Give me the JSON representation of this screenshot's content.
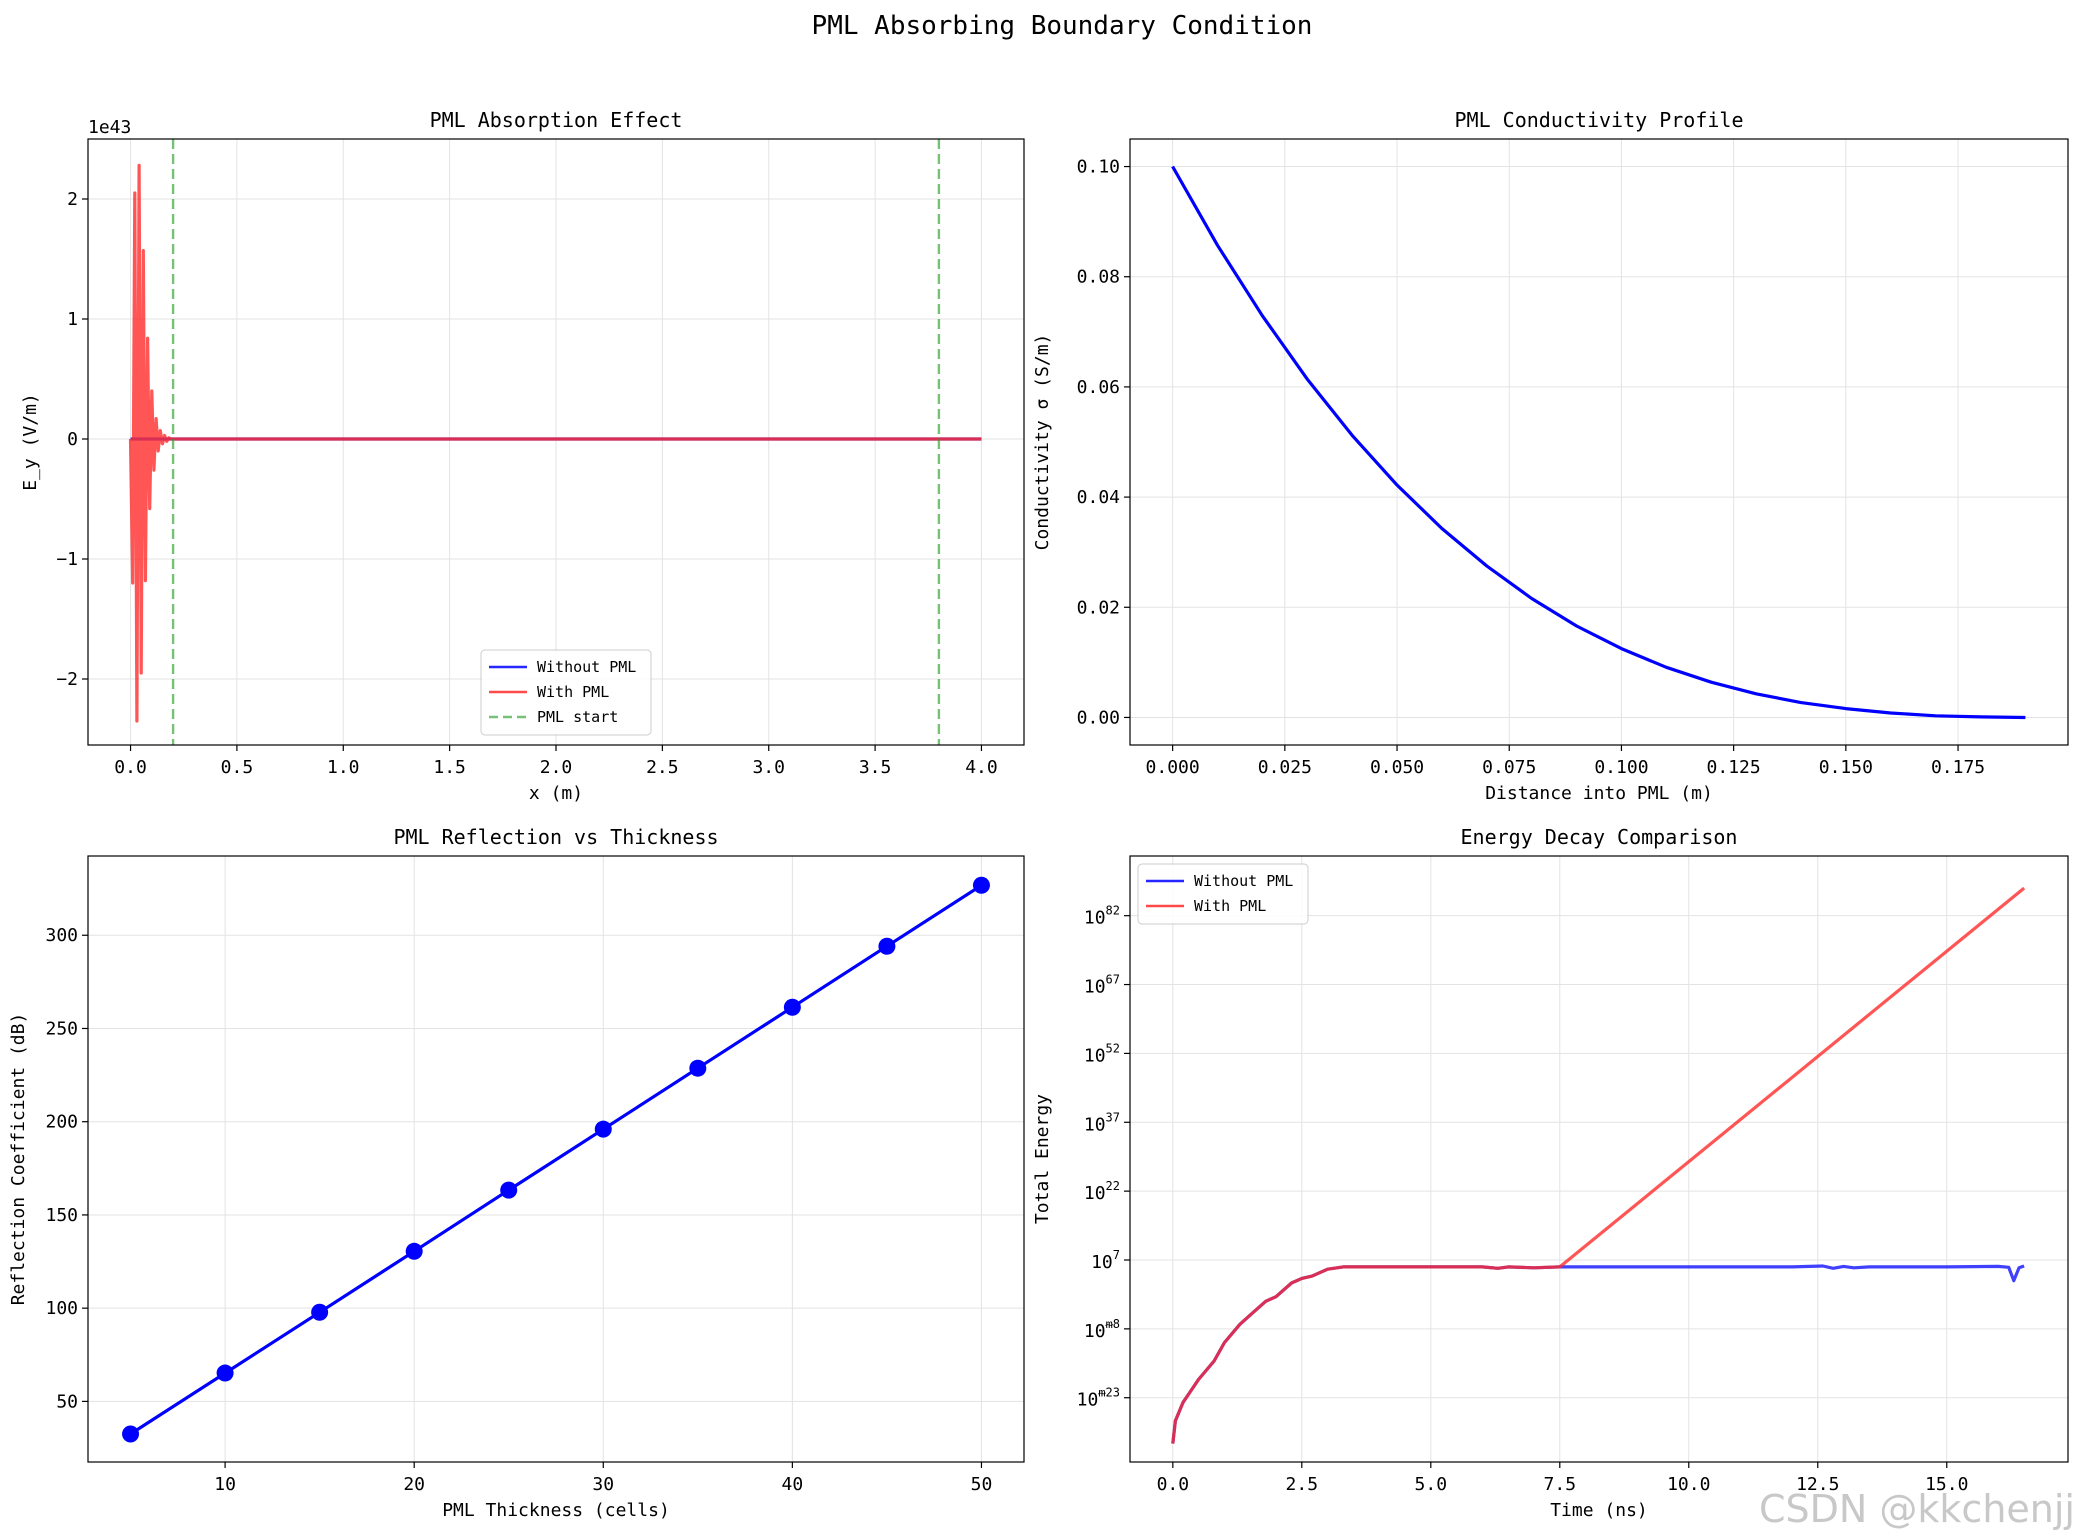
{
  "figure": {
    "title": "PML Absorbing Boundary Condition",
    "watermark": "CSDN @kkchenjj"
  },
  "colors": {
    "blue": "#0000ff",
    "red": "#ff2a2a",
    "green": "#2ca02c",
    "grid": "#e3e3e3"
  },
  "chart_data": [
    {
      "id": "absorption",
      "type": "line",
      "title": "PML Absorption Effect",
      "xlabel": "x (m)",
      "ylabel": "E_y (V/m)",
      "offset_text": "1e43",
      "xlim": [
        -0.2,
        4.2
      ],
      "ylim": [
        -2.55,
        2.5
      ],
      "xticks": [
        0.0,
        0.5,
        1.0,
        1.5,
        2.0,
        2.5,
        3.0,
        3.5,
        4.0
      ],
      "xtick_labels": [
        "0.0",
        "0.5",
        "1.0",
        "1.5",
        "2.0",
        "2.5",
        "3.0",
        "3.5",
        "4.0"
      ],
      "yticks": [
        -2,
        -1,
        0,
        1,
        2
      ],
      "ytick_labels": [
        "−2",
        "−1",
        "0",
        "1",
        "2"
      ],
      "grid": true,
      "legend": "lower center",
      "series": [
        {
          "name": "Without PML",
          "color": "#0000ff",
          "style": "solid",
          "x": [
            0.0,
            4.0
          ],
          "y": [
            0.0,
            0.0
          ]
        },
        {
          "name": "With PML",
          "color": "#ff2a2a",
          "style": "solid",
          "x": [
            0.0,
            0.01,
            0.02,
            0.03,
            0.04,
            0.05,
            0.06,
            0.07,
            0.08,
            0.09,
            0.1,
            0.11,
            0.12,
            0.13,
            0.14,
            0.15,
            0.16,
            0.17,
            0.18,
            0.19,
            0.2,
            4.0
          ],
          "y": [
            0.0,
            -1.2,
            2.05,
            -2.35,
            2.28,
            -1.95,
            1.57,
            -1.18,
            0.84,
            -0.58,
            0.4,
            -0.26,
            0.17,
            -0.1,
            0.07,
            -0.04,
            0.03,
            -0.02,
            0.01,
            0.0,
            0.0,
            0.0
          ]
        },
        {
          "name": "PML start",
          "color": "#2ca02c",
          "style": "dashed",
          "vlines": [
            0.2,
            3.8
          ]
        }
      ]
    },
    {
      "id": "conductivity",
      "type": "line",
      "title": "PML Conductivity Profile",
      "xlabel": "Distance into PML (m)",
      "ylabel": "Conductivity σ (S/m)",
      "xlim": [
        -0.0095,
        0.1995
      ],
      "ylim": [
        -0.005,
        0.105
      ],
      "xticks": [
        0.0,
        0.025,
        0.05,
        0.075,
        0.1,
        0.125,
        0.15,
        0.175
      ],
      "xtick_labels": [
        "0.000",
        "0.025",
        "0.050",
        "0.075",
        "0.100",
        "0.125",
        "0.150",
        "0.175"
      ],
      "yticks": [
        0.0,
        0.02,
        0.04,
        0.06,
        0.08,
        0.1
      ],
      "ytick_labels": [
        "0.00",
        "0.02",
        "0.04",
        "0.06",
        "0.08",
        "0.10"
      ],
      "grid": true,
      "series": [
        {
          "name": "",
          "color": "#0000ff",
          "x": [
            0.0,
            0.01,
            0.02,
            0.03,
            0.04,
            0.05,
            0.06,
            0.07,
            0.08,
            0.09,
            0.1,
            0.11,
            0.12,
            0.13,
            0.14,
            0.15,
            0.16,
            0.17,
            0.18,
            0.19
          ],
          "y": [
            0.1,
            0.0857,
            0.0729,
            0.0614,
            0.0512,
            0.0422,
            0.0343,
            0.0275,
            0.0216,
            0.0166,
            0.0125,
            0.0091,
            0.0064,
            0.0043,
            0.0027,
            0.0016,
            0.0008,
            0.0003,
            0.0001,
            0.0
          ]
        }
      ]
    },
    {
      "id": "reflection",
      "type": "line",
      "title": "PML Reflection vs Thickness",
      "xlabel": "PML Thickness (cells)",
      "ylabel": "Reflection Coefficient (dB)",
      "xlim": [
        2.75,
        52.25
      ],
      "ylim": [
        17.5,
        342.5
      ],
      "xticks": [
        10,
        20,
        30,
        40,
        50
      ],
      "xtick_labels": [
        "10",
        "20",
        "30",
        "40",
        "50"
      ],
      "yticks": [
        50,
        100,
        150,
        200,
        250,
        300
      ],
      "ytick_labels": [
        "50",
        "100",
        "150",
        "200",
        "250",
        "300"
      ],
      "grid": true,
      "series": [
        {
          "name": "",
          "color": "#0000ff",
          "marker": "circle",
          "x": [
            5,
            10,
            15,
            20,
            25,
            30,
            35,
            40,
            45,
            50
          ],
          "y": [
            32.5,
            65.2,
            97.8,
            130.5,
            163.3,
            196.0,
            228.7,
            261.4,
            294.1,
            326.8
          ]
        }
      ]
    },
    {
      "id": "energy",
      "type": "line",
      "title": "Energy Decay Comparison",
      "xlabel": "Time (ns)",
      "ylabel": "Total Energy",
      "xscale": "linear",
      "yscale": "log",
      "xlim": [
        -0.83,
        17.35
      ],
      "ylim_log10": [
        -37,
        95
      ],
      "xticks": [
        0.0,
        2.5,
        5.0,
        7.5,
        10.0,
        12.5,
        15.0
      ],
      "xtick_labels": [
        "0.0",
        "2.5",
        "5.0",
        "7.5",
        "10.0",
        "12.5",
        "15.0"
      ],
      "yticks_log10": [
        -23,
        -8,
        7,
        22,
        37,
        52,
        67,
        82
      ],
      "ytick_base": "10",
      "ytick_exponents": [
        "ᵯ23",
        "ᵯ8",
        "7",
        "22",
        "37",
        "52",
        "67",
        "82"
      ],
      "grid": true,
      "legend": "upper left",
      "series": [
        {
          "name": "Without PML",
          "color": "#0000ff",
          "x": [
            0.0,
            0.05,
            0.2,
            0.5,
            0.8,
            1.0,
            1.3,
            1.5,
            1.8,
            2.0,
            2.3,
            2.5,
            2.7,
            3.0,
            3.3,
            4.0,
            5.0,
            6.0,
            6.3,
            6.5,
            7.0,
            7.5,
            8.0,
            10.0,
            12.0,
            12.6,
            12.8,
            13.0,
            13.2,
            13.5,
            14.0,
            15.0,
            16.0,
            16.2,
            16.3,
            16.4,
            16.5
          ],
          "y_log10": [
            -33,
            -28,
            -24,
            -19,
            -15,
            -11,
            -7,
            -5,
            -2,
            -1,
            2,
            3,
            3.5,
            5,
            5.5,
            5.5,
            5.5,
            5.5,
            5.2,
            5.5,
            5.3,
            5.5,
            5.5,
            5.5,
            5.5,
            5.7,
            5.2,
            5.6,
            5.3,
            5.5,
            5.5,
            5.5,
            5.6,
            5.4,
            2.5,
            5.3,
            5.7
          ]
        },
        {
          "name": "With PML",
          "color": "#ff2a2a",
          "x": [
            0.0,
            0.05,
            0.2,
            0.5,
            0.8,
            1.0,
            1.3,
            1.5,
            1.8,
            2.0,
            2.3,
            2.5,
            2.7,
            3.0,
            3.3,
            4.0,
            5.0,
            6.0,
            6.3,
            6.5,
            7.0,
            7.5,
            16.5
          ],
          "y_log10": [
            -33,
            -28,
            -24,
            -19,
            -15,
            -11,
            -7,
            -5,
            -2,
            -1,
            2,
            3,
            3.5,
            5,
            5.5,
            5.5,
            5.5,
            5.5,
            5.2,
            5.5,
            5.3,
            5.5,
            88
          ]
        }
      ]
    }
  ]
}
